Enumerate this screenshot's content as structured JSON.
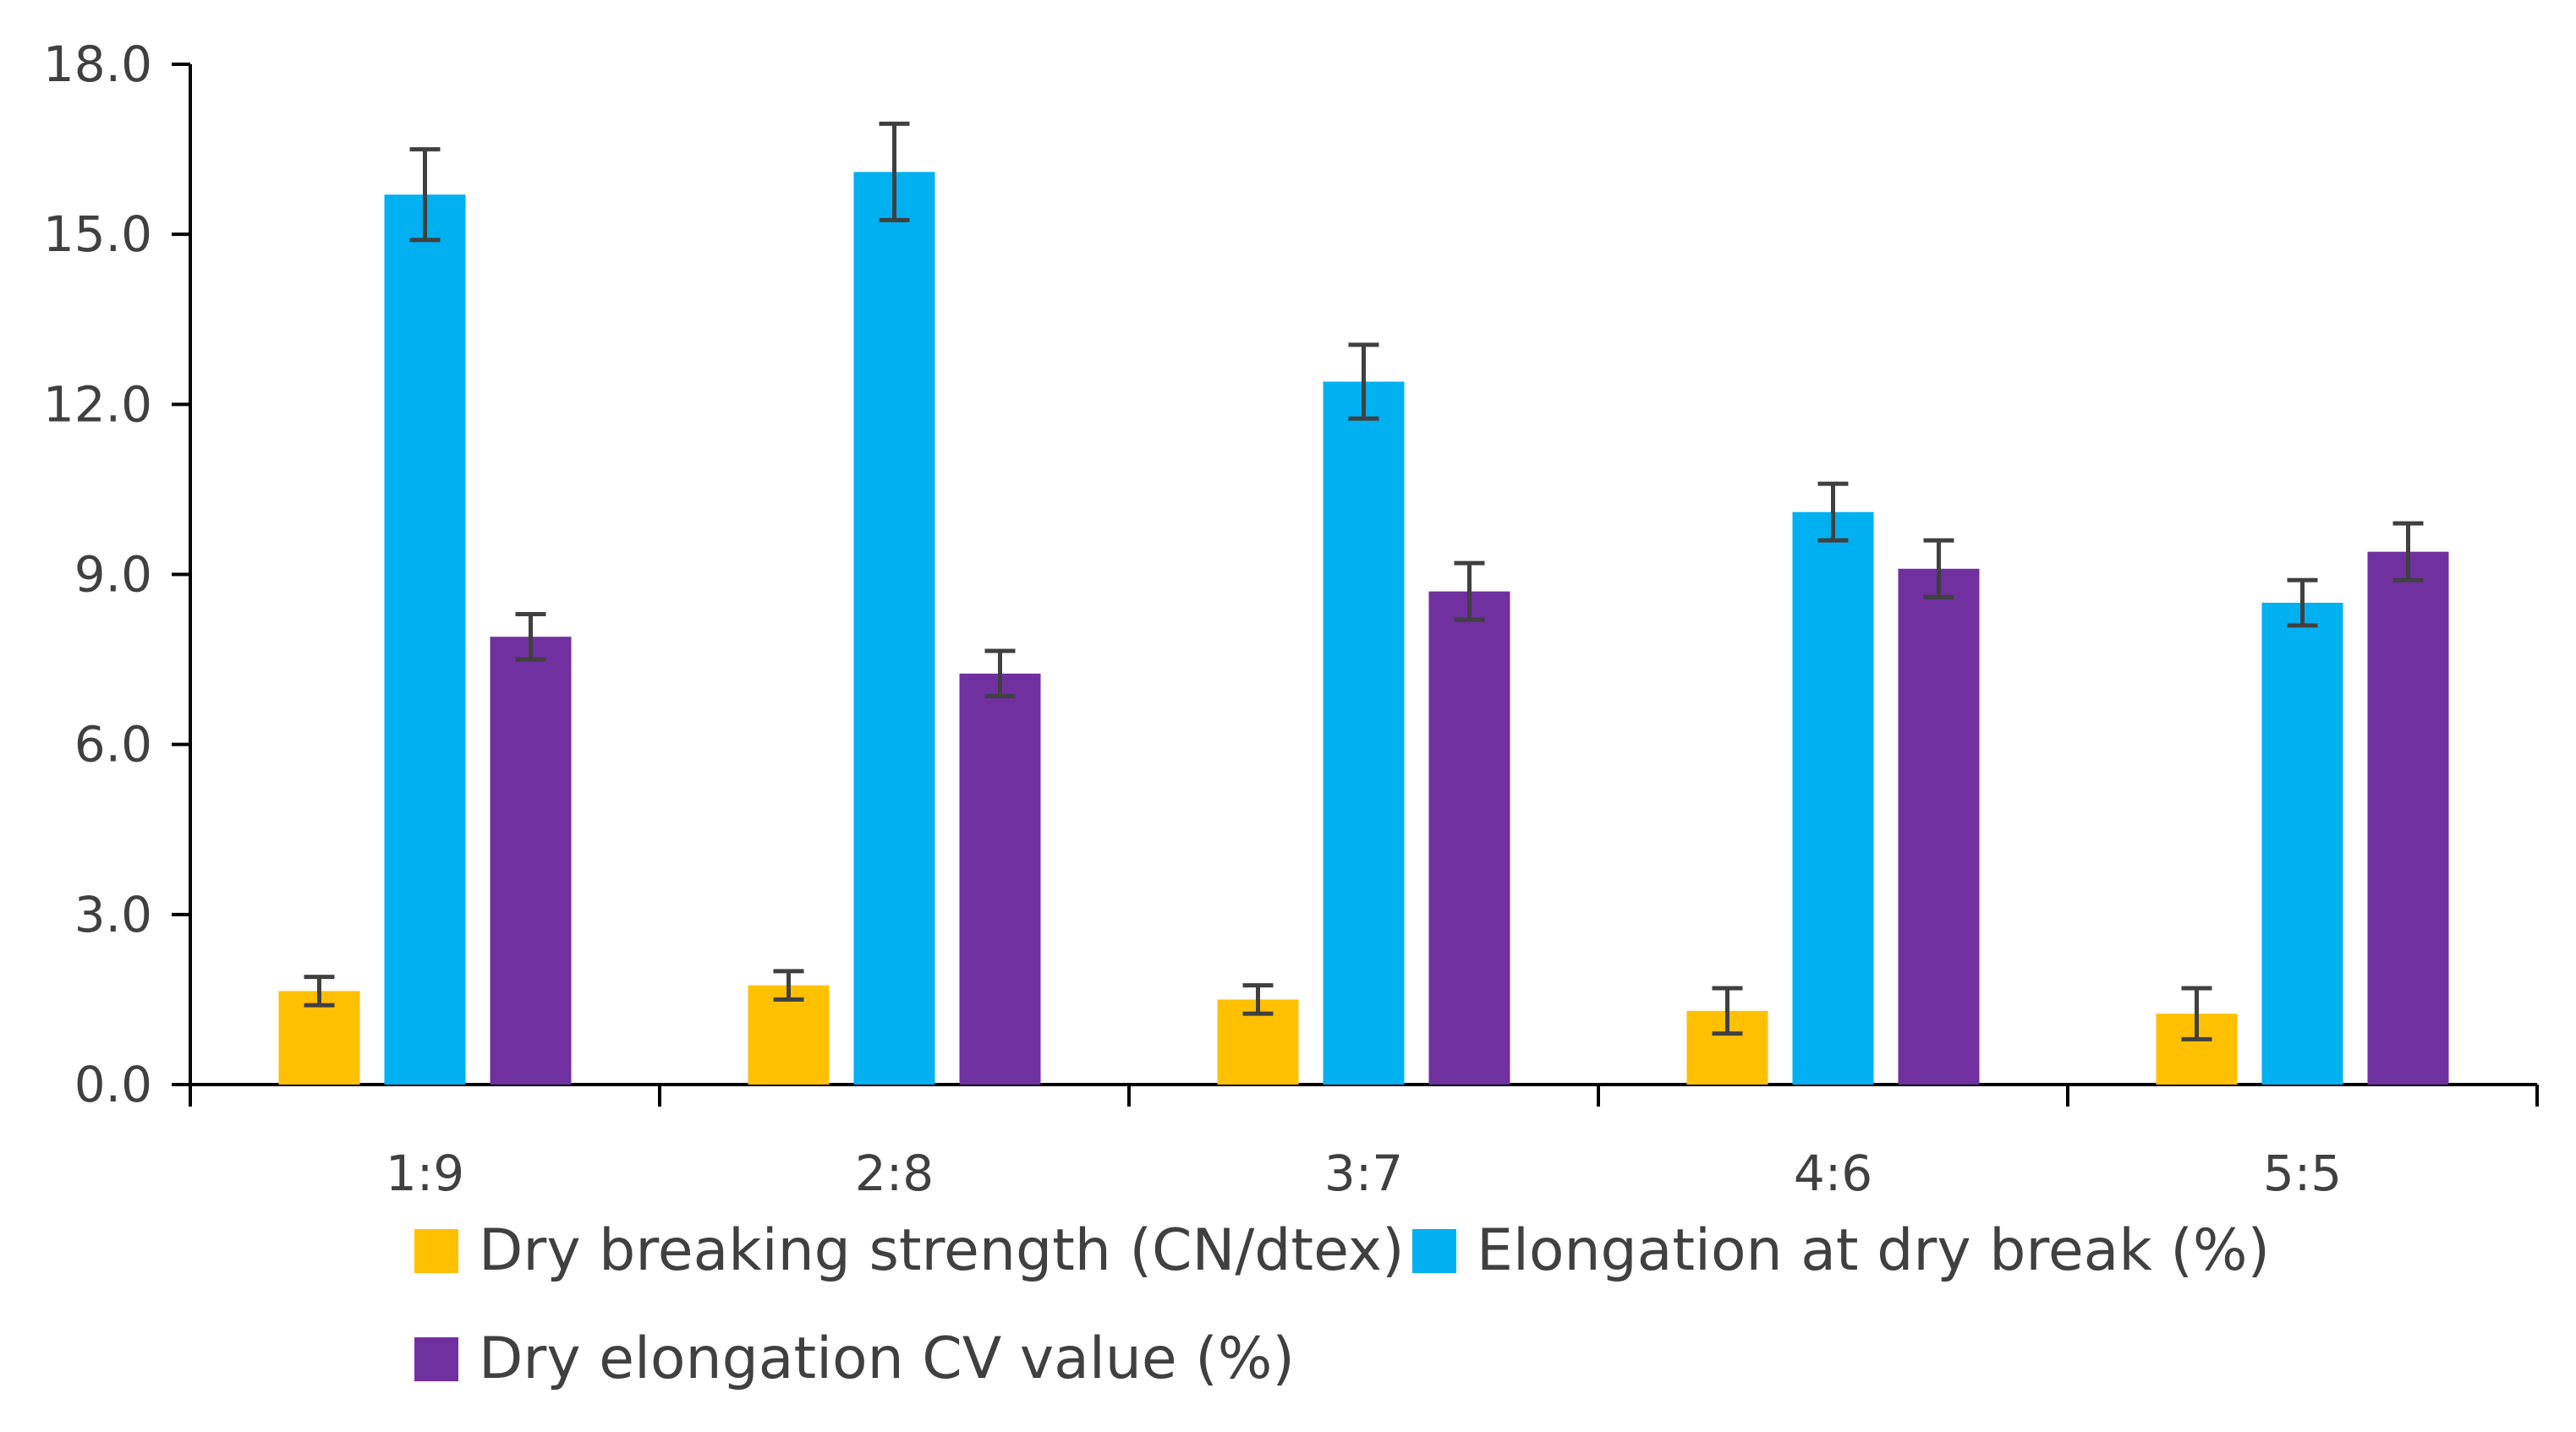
{
  "chart_data": {
    "type": "bar",
    "categories": [
      "1:9",
      "2:8",
      "3:7",
      "4:6",
      "5:5"
    ],
    "series": [
      {
        "name": "Dry breaking strength (CN/dtex)",
        "color": "#FFC000",
        "values": [
          1.65,
          1.75,
          1.5,
          1.3,
          1.25
        ],
        "errors": [
          0.25,
          0.25,
          0.25,
          0.4,
          0.45
        ]
      },
      {
        "name": "Elongation at dry break (%)",
        "color": "#00B0F0",
        "values": [
          15.7,
          16.1,
          12.4,
          10.1,
          8.5
        ],
        "errors": [
          0.8,
          0.85,
          0.65,
          0.5,
          0.4
        ]
      },
      {
        "name": "Dry elongation CV value (%)",
        "color": "#7030A0",
        "values": [
          7.9,
          7.25,
          8.7,
          9.1,
          9.4
        ],
        "errors": [
          0.4,
          0.4,
          0.5,
          0.5,
          0.5
        ]
      }
    ],
    "yticks": [
      "0.0",
      "3.0",
      "6.0",
      "9.0",
      "12.0",
      "15.0",
      "18.0"
    ],
    "ylim": [
      0,
      18
    ],
    "title": "",
    "xlabel": "",
    "ylabel": "",
    "legend_position": "bottom",
    "grid": false
  }
}
